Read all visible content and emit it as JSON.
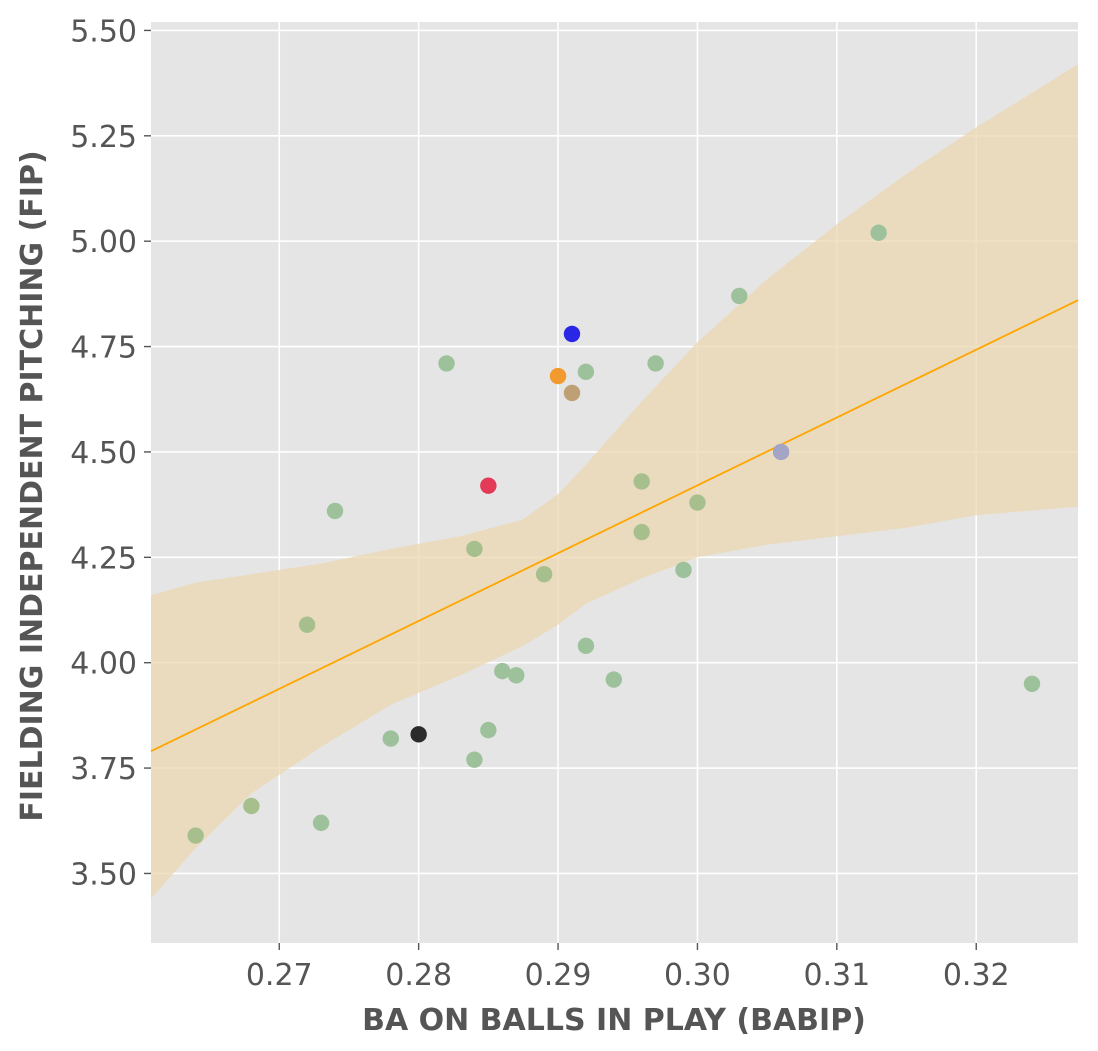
{
  "chart_data": {
    "type": "scatter",
    "title": "",
    "xlabel": "BA ON BALLS IN PLAY (BABIP)",
    "ylabel": "FIELDING INDEPENDENT PITCHING (FIP)",
    "xlim": [
      0.2608,
      0.3273
    ],
    "ylim": [
      3.335,
      5.52
    ],
    "grid": true,
    "x_ticks": [
      0.27,
      0.28,
      0.29,
      0.3,
      0.31,
      0.32
    ],
    "x_tick_labels": [
      "0.27",
      "0.28",
      "0.29",
      "0.30",
      "0.31",
      "0.32"
    ],
    "y_ticks": [
      3.5,
      3.75,
      4.0,
      4.25,
      4.5,
      4.75,
      5.0,
      5.25,
      5.5
    ],
    "y_tick_labels": [
      "3.50",
      "3.75",
      "4.00",
      "4.25",
      "4.50",
      "4.75",
      "5.00",
      "5.25",
      "5.50"
    ],
    "colors": {
      "background": "#e5e5e5",
      "grid": "#ffffff",
      "default_point": "#9dc29b",
      "regression_line": "#ffa500",
      "confidence_band": "#ecd7b0"
    },
    "points": [
      {
        "x": 0.264,
        "y": 3.59,
        "color": "#a7bf8d"
      },
      {
        "x": 0.268,
        "y": 3.66,
        "color": "#a7bf8d"
      },
      {
        "x": 0.272,
        "y": 4.09,
        "color": "#a7bf8d"
      },
      {
        "x": 0.273,
        "y": 3.62,
        "color": "#9dc29b"
      },
      {
        "x": 0.274,
        "y": 4.36,
        "color": "#9dc29b"
      },
      {
        "x": 0.278,
        "y": 3.82,
        "color": "#9dc29b"
      },
      {
        "x": 0.28,
        "y": 3.83,
        "color": "#2b2b2b"
      },
      {
        "x": 0.282,
        "y": 4.71,
        "color": "#9dc29b"
      },
      {
        "x": 0.284,
        "y": 4.27,
        "color": "#a7bf8d"
      },
      {
        "x": 0.284,
        "y": 3.77,
        "color": "#9dc29b"
      },
      {
        "x": 0.285,
        "y": 4.42,
        "color": "#e23a57"
      },
      {
        "x": 0.285,
        "y": 3.84,
        "color": "#9dc29b"
      },
      {
        "x": 0.286,
        "y": 3.98,
        "color": "#9dc29b"
      },
      {
        "x": 0.287,
        "y": 3.97,
        "color": "#9dc29b"
      },
      {
        "x": 0.289,
        "y": 4.21,
        "color": "#a7bf8d"
      },
      {
        "x": 0.29,
        "y": 4.68,
        "color": "#f39a2e"
      },
      {
        "x": 0.291,
        "y": 4.78,
        "color": "#2a26e6"
      },
      {
        "x": 0.291,
        "y": 4.64,
        "color": "#bfa074"
      },
      {
        "x": 0.292,
        "y": 4.69,
        "color": "#9dc29b"
      },
      {
        "x": 0.292,
        "y": 4.04,
        "color": "#9dc29b"
      },
      {
        "x": 0.294,
        "y": 3.96,
        "color": "#9dc29b"
      },
      {
        "x": 0.296,
        "y": 4.43,
        "color": "#a7bf8d"
      },
      {
        "x": 0.296,
        "y": 4.31,
        "color": "#a7bf8d"
      },
      {
        "x": 0.297,
        "y": 4.71,
        "color": "#9dc29b"
      },
      {
        "x": 0.299,
        "y": 4.22,
        "color": "#9dc29b"
      },
      {
        "x": 0.3,
        "y": 4.38,
        "color": "#a7bf8d"
      },
      {
        "x": 0.303,
        "y": 4.87,
        "color": "#9dc29b"
      },
      {
        "x": 0.306,
        "y": 4.5,
        "color": "#a3a4c6"
      },
      {
        "x": 0.313,
        "y": 5.02,
        "color": "#9dc29b"
      },
      {
        "x": 0.324,
        "y": 3.95,
        "color": "#9dc29b"
      }
    ],
    "regression_line": {
      "x": [
        0.2608,
        0.3273
      ],
      "y": [
        3.79,
        4.86
      ]
    },
    "confidence_band": {
      "x": [
        0.2608,
        0.264,
        0.268,
        0.273,
        0.278,
        0.283,
        0.2875,
        0.29,
        0.292,
        0.296,
        0.3,
        0.305,
        0.31,
        0.315,
        0.32,
        0.3273
      ],
      "upper": [
        4.16,
        4.19,
        4.21,
        4.235,
        4.27,
        4.3,
        4.34,
        4.4,
        4.47,
        4.62,
        4.76,
        4.91,
        5.04,
        5.16,
        5.27,
        5.42
      ],
      "lower": [
        3.44,
        3.56,
        3.69,
        3.8,
        3.9,
        3.97,
        4.04,
        4.09,
        4.14,
        4.2,
        4.25,
        4.28,
        4.3,
        4.32,
        4.35,
        4.37
      ]
    }
  }
}
